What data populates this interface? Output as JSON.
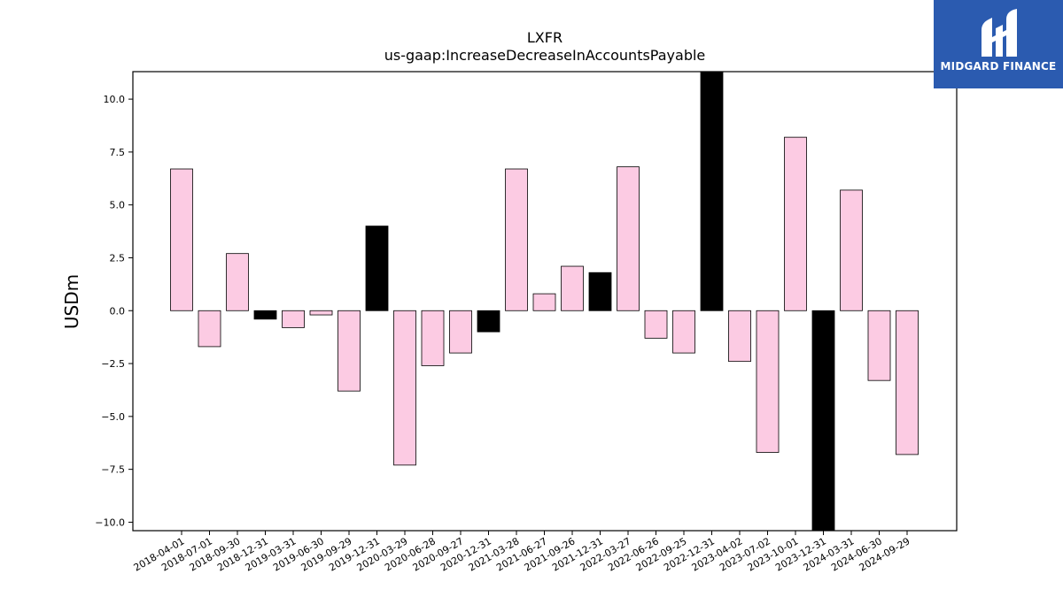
{
  "brand": {
    "name": "MIDGARD FINANCE",
    "bg_color": "#2b5bb0"
  },
  "chart_data": {
    "type": "bar",
    "title": "LXFR",
    "subtitle": "us-gaap:IncreaseDecreaseInAccountsPayable",
    "xlabel": "",
    "ylabel": "USDm",
    "ylim": [
      -10.4,
      11.3
    ],
    "yticks": [
      -10.0,
      -7.5,
      -5.0,
      -2.5,
      0.0,
      2.5,
      5.0,
      7.5,
      10.0
    ],
    "ytick_labels": [
      "−10.0",
      "−7.5",
      "−5.0",
      "−2.5",
      "0.0",
      "2.5",
      "5.0",
      "7.5",
      "10.0"
    ],
    "grid": false,
    "colors": {
      "default": "#fccbe3",
      "highlight": "#000000",
      "edge": "#000000"
    },
    "categories": [
      "2018-04-01",
      "2018-07-01",
      "2018-09-30",
      "2018-12-31",
      "2019-03-31",
      "2019-06-30",
      "2019-09-29",
      "2019-12-31",
      "2020-03-29",
      "2020-06-28",
      "2020-09-27",
      "2020-12-31",
      "2021-03-28",
      "2021-06-27",
      "2021-09-26",
      "2021-12-31",
      "2022-03-27",
      "2022-06-26",
      "2022-09-25",
      "2022-12-31",
      "2023-04-02",
      "2023-07-02",
      "2023-10-01",
      "2023-12-31",
      "2024-03-31",
      "2024-06-30",
      "2024-09-29"
    ],
    "values": [
      6.7,
      -1.7,
      2.7,
      -0.4,
      -0.8,
      -0.2,
      -3.8,
      4.0,
      -7.3,
      -2.6,
      -2.0,
      -1.0,
      6.7,
      0.8,
      2.1,
      1.8,
      6.8,
      -1.3,
      -2.0,
      11.3,
      -2.4,
      -6.7,
      8.2,
      -10.4,
      5.7,
      -3.3,
      -6.8
    ],
    "highlight": [
      false,
      false,
      false,
      true,
      false,
      false,
      false,
      true,
      false,
      false,
      false,
      true,
      false,
      false,
      false,
      true,
      false,
      false,
      false,
      true,
      false,
      false,
      false,
      true,
      false,
      false,
      false
    ]
  }
}
